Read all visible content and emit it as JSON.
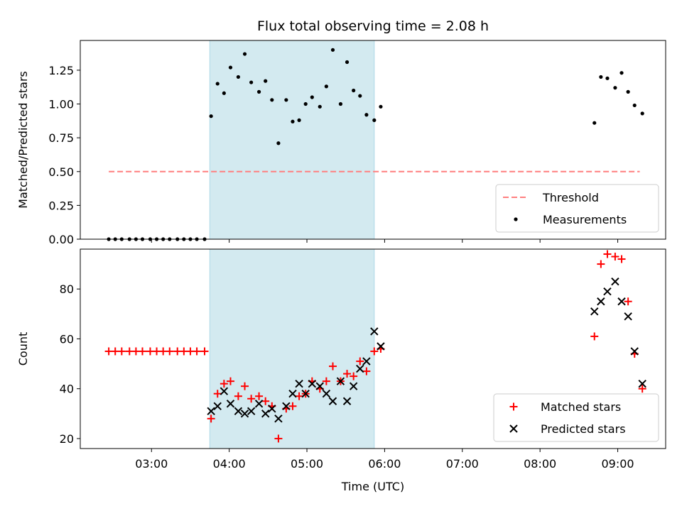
{
  "chart_data": [
    {
      "type": "scatter",
      "title": "Flux total observing time = 2.08 h",
      "xlabel": "",
      "ylabel": "Matched/Predicted stars",
      "xlim": [
        "02:05",
        "09:37"
      ],
      "ylim": [
        0,
        1.47
      ],
      "y_ticks": [
        0.0,
        0.25,
        0.5,
        0.75,
        1.0,
        1.25
      ],
      "y_tick_labels": [
        "0.00",
        "0.25",
        "0.50",
        "0.75",
        "1.00",
        "1.25"
      ],
      "x_ticks": [
        "03:00",
        "04:00",
        "05:00",
        "06:00",
        "07:00",
        "08:00",
        "09:00"
      ],
      "x_tick_labels_shown": false,
      "shaded_interval": {
        "start": "03:45",
        "end": "05:52",
        "color": "#d3eaf0"
      },
      "legend_position": "lower right",
      "grid": false,
      "series": [
        {
          "name": "Threshold",
          "kind": "dashed-line",
          "color": "#ff7f7f",
          "points": [
            {
              "x": "02:27",
              "y": 0.5
            },
            {
              "x": "09:17",
              "y": 0.5
            }
          ]
        },
        {
          "name": "Measurements",
          "kind": "dots",
          "color": "#000000",
          "points": [
            {
              "x": "02:27",
              "y": 0.0
            },
            {
              "x": "02:32",
              "y": 0.0
            },
            {
              "x": "02:37",
              "y": 0.0
            },
            {
              "x": "02:43",
              "y": 0.0
            },
            {
              "x": "02:48",
              "y": 0.0
            },
            {
              "x": "02:53",
              "y": 0.0
            },
            {
              "x": "02:59",
              "y": 0.0
            },
            {
              "x": "03:04",
              "y": 0.0
            },
            {
              "x": "03:09",
              "y": 0.0
            },
            {
              "x": "03:14",
              "y": 0.0
            },
            {
              "x": "03:20",
              "y": 0.0
            },
            {
              "x": "03:25",
              "y": 0.0
            },
            {
              "x": "03:30",
              "y": 0.0
            },
            {
              "x": "03:35",
              "y": 0.0
            },
            {
              "x": "03:41",
              "y": 0.0
            },
            {
              "x": "03:46",
              "y": 0.91
            },
            {
              "x": "03:51",
              "y": 1.15
            },
            {
              "x": "03:56",
              "y": 1.08
            },
            {
              "x": "04:01",
              "y": 1.27
            },
            {
              "x": "04:07",
              "y": 1.2
            },
            {
              "x": "04:12",
              "y": 1.37
            },
            {
              "x": "04:17",
              "y": 1.16
            },
            {
              "x": "04:23",
              "y": 1.09
            },
            {
              "x": "04:28",
              "y": 1.17
            },
            {
              "x": "04:33",
              "y": 1.03
            },
            {
              "x": "04:38",
              "y": 0.71
            },
            {
              "x": "04:44",
              "y": 1.03
            },
            {
              "x": "04:49",
              "y": 0.87
            },
            {
              "x": "04:54",
              "y": 0.88
            },
            {
              "x": "04:59",
              "y": 1.0
            },
            {
              "x": "05:04",
              "y": 1.05
            },
            {
              "x": "05:10",
              "y": 0.98
            },
            {
              "x": "05:15",
              "y": 1.13
            },
            {
              "x": "05:20",
              "y": 1.4
            },
            {
              "x": "05:26",
              "y": 1.0
            },
            {
              "x": "05:31",
              "y": 1.31
            },
            {
              "x": "05:36",
              "y": 1.1
            },
            {
              "x": "05:41",
              "y": 1.06
            },
            {
              "x": "05:46",
              "y": 0.92
            },
            {
              "x": "05:52",
              "y": 0.88
            },
            {
              "x": "05:57",
              "y": 0.98
            },
            {
              "x": "08:42",
              "y": 0.86
            },
            {
              "x": "08:47",
              "y": 1.2
            },
            {
              "x": "08:52",
              "y": 1.19
            },
            {
              "x": "08:58",
              "y": 1.12
            },
            {
              "x": "09:03",
              "y": 1.23
            },
            {
              "x": "09:08",
              "y": 1.09
            },
            {
              "x": "09:13",
              "y": 0.99
            },
            {
              "x": "09:19",
              "y": 0.93
            }
          ]
        }
      ]
    },
    {
      "type": "scatter",
      "title": "",
      "xlabel": "Time (UTC)",
      "ylabel": "Count",
      "xlim": [
        "02:05",
        "09:37"
      ],
      "ylim": [
        16,
        96
      ],
      "y_ticks": [
        20,
        40,
        60,
        80
      ],
      "y_tick_labels": [
        "20",
        "40",
        "60",
        "80"
      ],
      "x_ticks": [
        "03:00",
        "04:00",
        "05:00",
        "06:00",
        "07:00",
        "08:00",
        "09:00"
      ],
      "x_tick_labels": [
        "03:00",
        "04:00",
        "05:00",
        "06:00",
        "07:00",
        "08:00",
        "09:00"
      ],
      "shaded_interval": {
        "start": "03:45",
        "end": "05:52",
        "color": "#d3eaf0"
      },
      "legend_position": "lower right",
      "grid": false,
      "series": [
        {
          "name": "Matched stars",
          "kind": "plus",
          "color": "#ff0000",
          "points": [
            {
              "x": "02:27",
              "y": 55
            },
            {
              "x": "02:32",
              "y": 55
            },
            {
              "x": "02:37",
              "y": 55
            },
            {
              "x": "02:43",
              "y": 55
            },
            {
              "x": "02:48",
              "y": 55
            },
            {
              "x": "02:53",
              "y": 55
            },
            {
              "x": "02:59",
              "y": 55
            },
            {
              "x": "03:04",
              "y": 55
            },
            {
              "x": "03:09",
              "y": 55
            },
            {
              "x": "03:14",
              "y": 55
            },
            {
              "x": "03:20",
              "y": 55
            },
            {
              "x": "03:25",
              "y": 55
            },
            {
              "x": "03:30",
              "y": 55
            },
            {
              "x": "03:35",
              "y": 55
            },
            {
              "x": "03:41",
              "y": 55
            },
            {
              "x": "03:46",
              "y": 28
            },
            {
              "x": "03:51",
              "y": 38
            },
            {
              "x": "03:56",
              "y": 42
            },
            {
              "x": "04:01",
              "y": 43
            },
            {
              "x": "04:07",
              "y": 37
            },
            {
              "x": "04:12",
              "y": 41
            },
            {
              "x": "04:17",
              "y": 36
            },
            {
              "x": "04:23",
              "y": 37
            },
            {
              "x": "04:28",
              "y": 35
            },
            {
              "x": "04:33",
              "y": 33
            },
            {
              "x": "04:38",
              "y": 20
            },
            {
              "x": "04:44",
              "y": 32
            },
            {
              "x": "04:49",
              "y": 33
            },
            {
              "x": "04:54",
              "y": 37
            },
            {
              "x": "04:59",
              "y": 38
            },
            {
              "x": "05:04",
              "y": 43
            },
            {
              "x": "05:10",
              "y": 40
            },
            {
              "x": "05:15",
              "y": 43
            },
            {
              "x": "05:20",
              "y": 49
            },
            {
              "x": "05:26",
              "y": 43
            },
            {
              "x": "05:31",
              "y": 46
            },
            {
              "x": "05:36",
              "y": 45
            },
            {
              "x": "05:41",
              "y": 51
            },
            {
              "x": "05:46",
              "y": 47
            },
            {
              "x": "05:52",
              "y": 55
            },
            {
              "x": "05:57",
              "y": 56
            },
            {
              "x": "08:42",
              "y": 61
            },
            {
              "x": "08:47",
              "y": 90
            },
            {
              "x": "08:52",
              "y": 94
            },
            {
              "x": "08:58",
              "y": 93
            },
            {
              "x": "09:03",
              "y": 92
            },
            {
              "x": "09:08",
              "y": 75
            },
            {
              "x": "09:13",
              "y": 54
            },
            {
              "x": "09:19",
              "y": 40
            }
          ]
        },
        {
          "name": "Predicted stars",
          "kind": "x",
          "color": "#000000",
          "points": [
            {
              "x": "03:46",
              "y": 31
            },
            {
              "x": "03:51",
              "y": 33
            },
            {
              "x": "03:56",
              "y": 39
            },
            {
              "x": "04:01",
              "y": 34
            },
            {
              "x": "04:07",
              "y": 31
            },
            {
              "x": "04:12",
              "y": 30
            },
            {
              "x": "04:17",
              "y": 31
            },
            {
              "x": "04:23",
              "y": 34
            },
            {
              "x": "04:28",
              "y": 30
            },
            {
              "x": "04:33",
              "y": 32
            },
            {
              "x": "04:38",
              "y": 28
            },
            {
              "x": "04:44",
              "y": 33
            },
            {
              "x": "04:49",
              "y": 38
            },
            {
              "x": "04:54",
              "y": 42
            },
            {
              "x": "04:59",
              "y": 38
            },
            {
              "x": "05:04",
              "y": 42
            },
            {
              "x": "05:10",
              "y": 41
            },
            {
              "x": "05:15",
              "y": 38
            },
            {
              "x": "05:20",
              "y": 35
            },
            {
              "x": "05:26",
              "y": 43
            },
            {
              "x": "05:31",
              "y": 35
            },
            {
              "x": "05:36",
              "y": 41
            },
            {
              "x": "05:41",
              "y": 48
            },
            {
              "x": "05:46",
              "y": 51
            },
            {
              "x": "05:52",
              "y": 63
            },
            {
              "x": "05:57",
              "y": 57
            },
            {
              "x": "08:42",
              "y": 71
            },
            {
              "x": "08:47",
              "y": 75
            },
            {
              "x": "08:52",
              "y": 79
            },
            {
              "x": "08:58",
              "y": 83
            },
            {
              "x": "09:03",
              "y": 75
            },
            {
              "x": "09:08",
              "y": 69
            },
            {
              "x": "09:13",
              "y": 55
            },
            {
              "x": "09:19",
              "y": 42
            }
          ]
        }
      ]
    }
  ]
}
